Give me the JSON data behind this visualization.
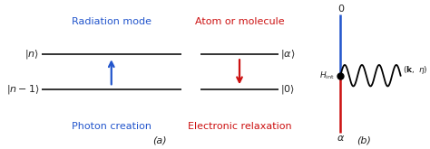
{
  "bg_color": "#ffffff",
  "level_color": "#333333",
  "blue_color": "#2255cc",
  "red_color": "#cc1111",
  "label_color": "#222222",
  "fig_width": 4.74,
  "fig_height": 1.65,
  "dpi": 100,
  "radiation_mode_label": "Radiation mode",
  "atom_molecule_label": "Atom or molecule",
  "photon_creation_label": "Photon creation",
  "electronic_relaxation_label": "Electronic relaxation",
  "panel_a_label": "(a)",
  "panel_b_label": "(b)",
  "bra_n": "$|n\\rangle$",
  "bra_n1": "$|n-1\\rangle$",
  "bra_alpha": "$|\\alpha\\rangle$",
  "bra_0": "$|0\\rangle$",
  "hint_label": "$H_{\\rm int}$",
  "k_eta_label": "$(\\mathbf{k},\\ \\eta)$",
  "zero_label": "0",
  "alpha_label": "$\\alpha$",
  "fontsize_label": 8,
  "fontsize_bra": 8,
  "fontsize_panel": 8
}
